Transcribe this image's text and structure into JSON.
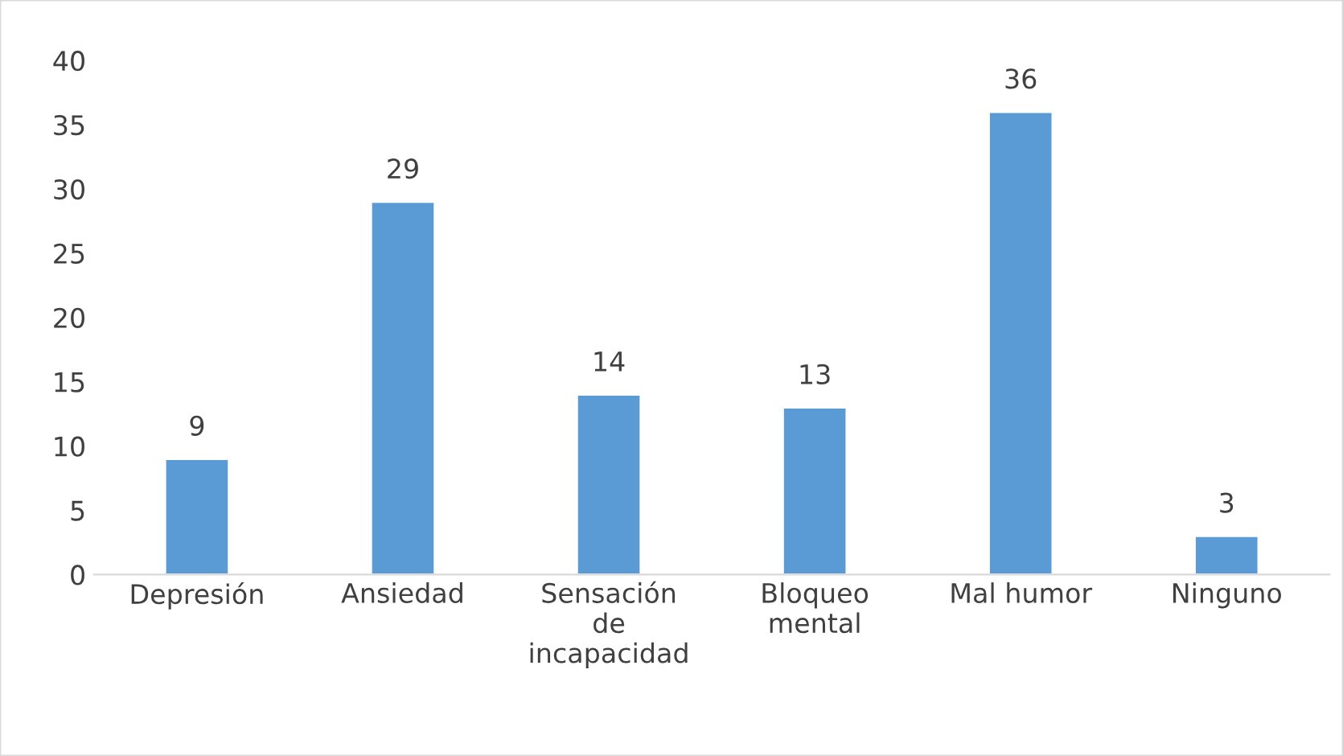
{
  "chart_data": {
    "type": "bar",
    "categories": [
      "Depresión",
      "Ansiedad",
      "Sensación\nde\nincapacidad",
      "Bloqueo\nmental",
      "Mal humor",
      "Ninguno"
    ],
    "values": [
      9,
      29,
      14,
      13,
      36,
      3
    ],
    "color": "#5b9bd5",
    "ylim": [
      0,
      40
    ],
    "yticks": [
      0,
      5,
      10,
      15,
      20,
      25,
      30,
      35,
      40
    ],
    "data_labels": true
  }
}
